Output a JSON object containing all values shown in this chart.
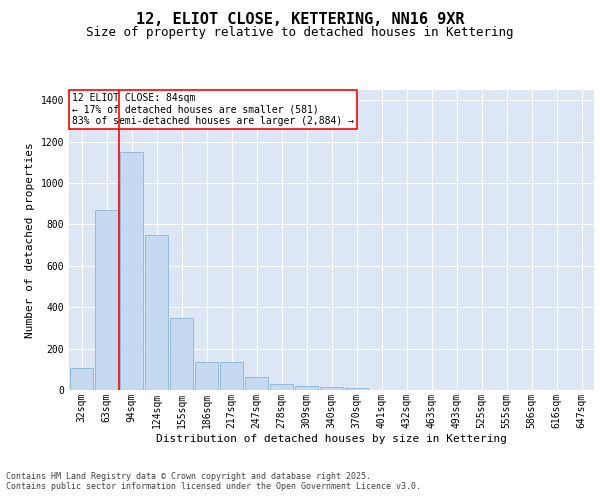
{
  "title1": "12, ELIOT CLOSE, KETTERING, NN16 9XR",
  "title2": "Size of property relative to detached houses in Kettering",
  "xlabel": "Distribution of detached houses by size in Kettering",
  "ylabel": "Number of detached properties",
  "categories": [
    "32sqm",
    "63sqm",
    "94sqm",
    "124sqm",
    "155sqm",
    "186sqm",
    "217sqm",
    "247sqm",
    "278sqm",
    "309sqm",
    "340sqm",
    "370sqm",
    "401sqm",
    "432sqm",
    "463sqm",
    "493sqm",
    "525sqm",
    "555sqm",
    "586sqm",
    "616sqm",
    "647sqm"
  ],
  "values": [
    105,
    870,
    1150,
    750,
    350,
    135,
    135,
    65,
    30,
    20,
    15,
    10,
    0,
    0,
    0,
    0,
    0,
    0,
    0,
    0,
    0
  ],
  "bar_color": "#c5d9f1",
  "bar_edge_color": "#8ab4d8",
  "property_line_color": "red",
  "annotation_text": "12 ELIOT CLOSE: 84sqm\n← 17% of detached houses are smaller (581)\n83% of semi-detached houses are larger (2,884) →",
  "annotation_box_color": "white",
  "annotation_box_edge_color": "red",
  "ylim": [
    0,
    1450
  ],
  "plot_background": "#dce6f5",
  "footer1": "Contains HM Land Registry data © Crown copyright and database right 2025.",
  "footer2": "Contains public sector information licensed under the Open Government Licence v3.0.",
  "title_fontsize": 11,
  "subtitle_fontsize": 9,
  "tick_fontsize": 7,
  "ylabel_fontsize": 8,
  "xlabel_fontsize": 8,
  "footer_fontsize": 6
}
